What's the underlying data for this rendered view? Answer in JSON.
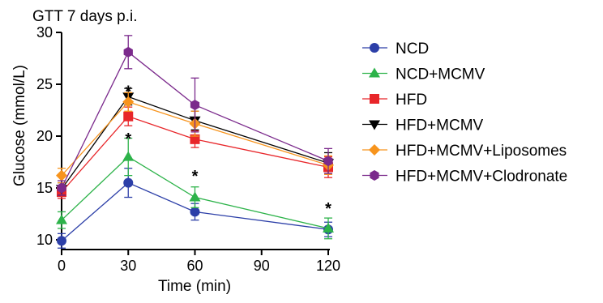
{
  "chart_data": {
    "type": "line",
    "title": "GTT 7 days p.i.",
    "xlabel": "Time (min)",
    "ylabel": "Glucose (mmol/L)",
    "x": [
      0,
      30,
      60,
      120
    ],
    "xlim": [
      0,
      120
    ],
    "ylim": [
      10,
      30
    ],
    "xticks": [
      0,
      30,
      60,
      90,
      120
    ],
    "yticks": [
      10,
      15,
      20,
      25,
      30
    ],
    "legend_position": "right",
    "series": [
      {
        "name": "NCD",
        "color": "#2c3fa8",
        "marker": "circle",
        "values": [
          9.9,
          15.5,
          12.7,
          11.0
        ],
        "errors": [
          0.7,
          1.4,
          0.8,
          0.7
        ]
      },
      {
        "name": "NCD+MCMV",
        "color": "#2db34a",
        "marker": "triangle-up",
        "values": [
          11.9,
          18.0,
          14.1,
          11.1
        ],
        "errors": [
          0.8,
          1.8,
          1.0,
          1.0
        ]
      },
      {
        "name": "HFD",
        "color": "#e8262a",
        "marker": "square",
        "values": [
          14.6,
          21.9,
          19.7,
          17.0
        ],
        "errors": [
          0.6,
          0.9,
          0.8,
          1.0
        ]
      },
      {
        "name": "HFD+MCMV",
        "color": "#000000",
        "marker": "triangle-down",
        "values": [
          14.9,
          23.8,
          21.5,
          17.4
        ],
        "errors": [
          0.6,
          0.8,
          0.9,
          1.0
        ]
      },
      {
        "name": "HFD+MCMV+Liposomes",
        "color": "#f7941d",
        "marker": "diamond",
        "values": [
          16.2,
          23.3,
          21.2,
          17.2
        ],
        "errors": [
          0.7,
          0.9,
          1.2,
          0.9
        ]
      },
      {
        "name": "HFD+MCMV+Clodronate",
        "color": "#7b2a8c",
        "marker": "hexagon",
        "values": [
          15.0,
          28.1,
          23.0,
          17.6
        ],
        "errors": [
          0.7,
          1.6,
          2.6,
          1.2
        ]
      }
    ],
    "annotations": [
      {
        "text": "*",
        "x": 30,
        "y": 24.9
      },
      {
        "text": "*",
        "x": 30,
        "y": 20.3
      },
      {
        "text": "*",
        "x": 60,
        "y": 16.7
      },
      {
        "text": "*",
        "x": 120,
        "y": 13.6
      }
    ]
  }
}
